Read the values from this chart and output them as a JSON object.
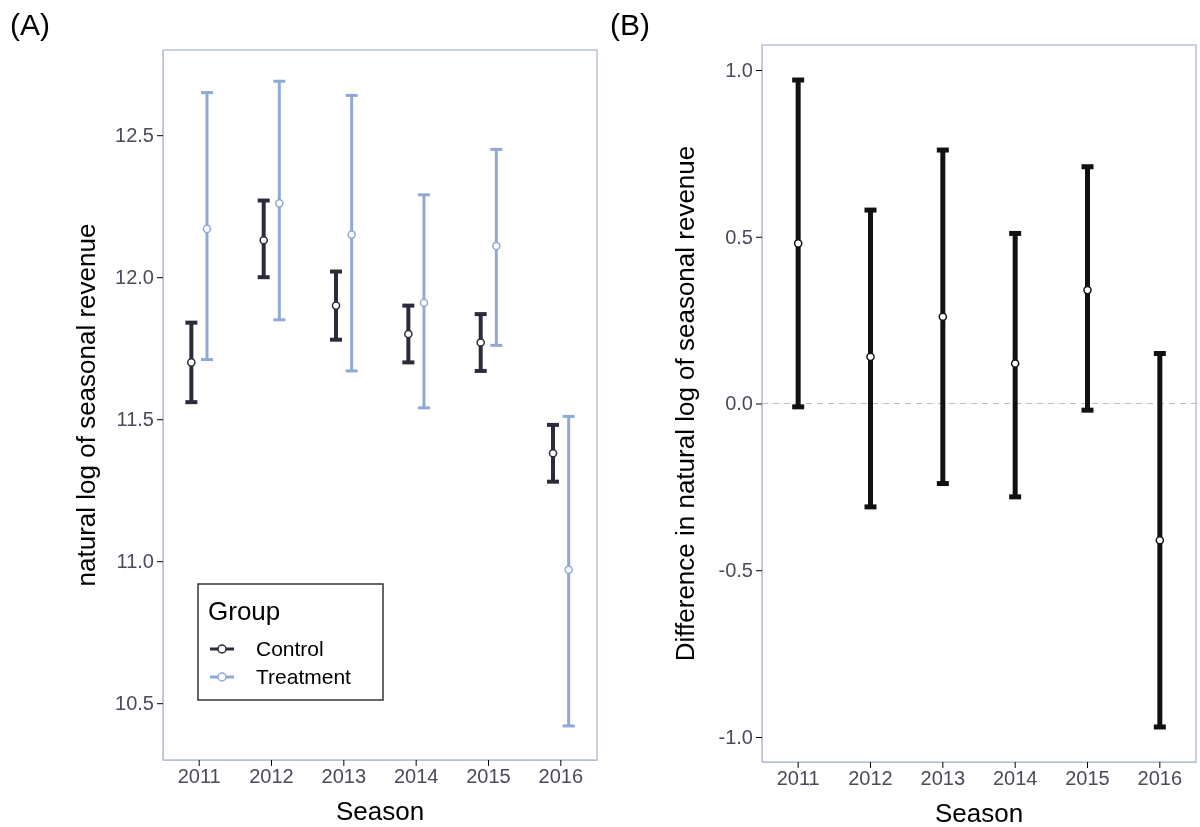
{
  "chart_data": [
    {
      "type": "scatter",
      "title": "(A)",
      "xlabel": "Season",
      "ylabel": "natural log of seasonal revenue",
      "legend_title": "Group",
      "legend": "bottom left",
      "marker": "circle",
      "categories": [
        "2011",
        "2012",
        "2013",
        "2014",
        "2015",
        "2016"
      ],
      "ylim": [
        10.3,
        12.8
      ],
      "yticks": [
        10.5,
        {
          "value": 11,
          "label": "11.0"
        },
        11.5,
        {
          "value": 12,
          "label": "12.0"
        },
        12.5
      ],
      "series": [
        {
          "name": "Control",
          "color": "#2b2b3a",
          "values": [
            11.7,
            12.13,
            11.9,
            11.8,
            11.77,
            11.38
          ],
          "errors": [
            [
              11.56,
              11.84
            ],
            [
              12.0,
              12.27
            ],
            [
              11.78,
              12.02
            ],
            [
              11.7,
              11.9
            ],
            [
              11.67,
              11.87
            ],
            [
              11.28,
              11.48
            ]
          ]
        },
        {
          "name": "Treatment",
          "color": "#8fa9d6",
          "values": [
            12.17,
            12.26,
            12.15,
            11.91,
            12.11,
            10.97
          ],
          "errors": [
            [
              11.71,
              12.65
            ],
            [
              11.85,
              12.69
            ],
            [
              11.67,
              12.64
            ],
            [
              11.54,
              12.29
            ],
            [
              11.76,
              12.45
            ],
            [
              10.42,
              11.51
            ]
          ]
        }
      ]
    },
    {
      "type": "scatter",
      "title": "(B)",
      "xlabel": "Season",
      "ylabel": "Difference in natural log of seasonal revenue",
      "marker": "circle",
      "categories": [
        "2011",
        "2012",
        "2013",
        "2014",
        "2015",
        "2016"
      ],
      "ylim": [
        -1.075,
        1.075
      ],
      "yticks": [
        {
          "value": -1,
          "label": "-1.0"
        },
        -0.5,
        {
          "value": 0,
          "label": "0.0"
        },
        0.5,
        {
          "value": 1,
          "label": "1.0"
        }
      ],
      "ref_lines": [
        {
          "axis": "y",
          "value": 0,
          "color": "#bbbbbb",
          "line_style": "dashed"
        }
      ],
      "series": [
        {
          "color": "#111111",
          "values": [
            0.48,
            0.14,
            0.26,
            0.12,
            0.34,
            -0.41
          ],
          "errors": [
            [
              -0.01,
              0.97
            ],
            [
              -0.31,
              0.58
            ],
            [
              -0.24,
              0.76
            ],
            [
              -0.28,
              0.51
            ],
            [
              -0.02,
              0.71
            ],
            [
              -0.97,
              0.15
            ]
          ]
        }
      ]
    }
  ]
}
